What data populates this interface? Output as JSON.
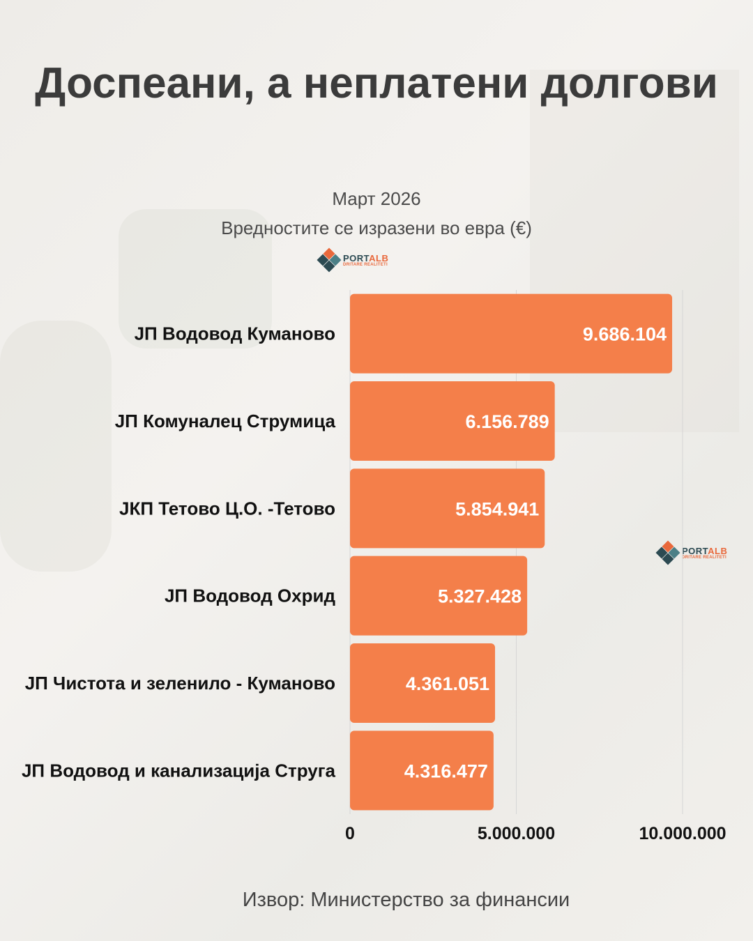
{
  "title": "Доспеани, а неплатени долгови",
  "subtitle_1": "Март 2026",
  "subtitle_2": "Вредностите се изразени во евра (€)",
  "source": "Извор: Министерство за финансии",
  "logo": {
    "brand_a": "PORT",
    "brand_b": "ALB",
    "tagline": "DRITARE REALITETI"
  },
  "colors": {
    "bar": "#f47f4a",
    "label": "#111111",
    "value": "#ffffff",
    "grid": "#d6d6d6"
  },
  "chart_data": {
    "type": "bar",
    "orientation": "horizontal",
    "categories": [
      "ЈП Водовод Куманово",
      "ЈП Комуналец Струмица",
      "ЈКП Тетово Ц.О. -Тетово",
      "ЈП Водовод Охрид",
      "ЈП Чистота и зеленило - Куманово",
      "ЈП Водовод и канализација Струга"
    ],
    "values": [
      9686104,
      6156789,
      5854941,
      5327428,
      4361051,
      4316477
    ],
    "value_labels": [
      "9.686.104",
      "6.156.789",
      "5.854.941",
      "5.327.428",
      "4.361.051",
      "4.316.477"
    ],
    "xlim": [
      0,
      10000000
    ],
    "xticks": [
      0,
      5000000,
      10000000
    ],
    "xtick_labels": [
      "0",
      "5.000.000",
      "10.000.000"
    ],
    "grid": true,
    "legend": "none"
  }
}
